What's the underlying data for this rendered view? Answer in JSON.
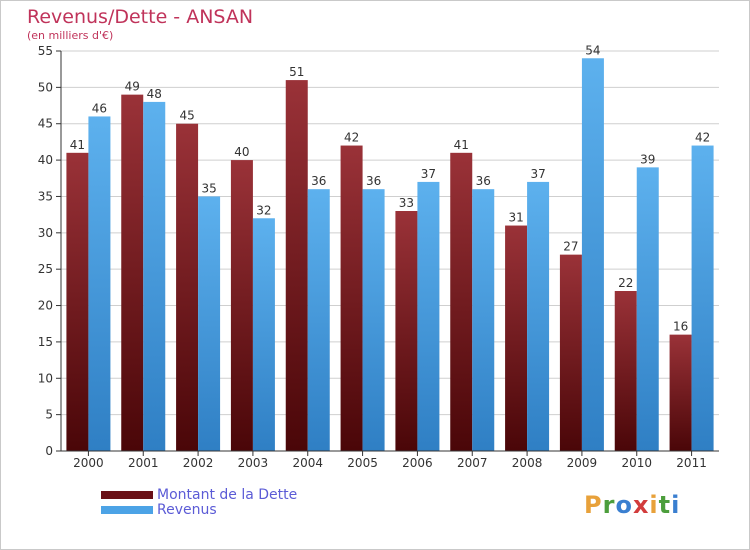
{
  "header": {
    "title": "Revenus/Dette - ANSAN",
    "subtitle": "(en milliers d'€)"
  },
  "colors": {
    "dette": "#7a1e24",
    "revenus": "#4ca3e6",
    "axis": "#333333",
    "grid": "#cfcfcf",
    "title": "#c0335a",
    "legend_text": "#5b5bd6"
  },
  "legend": {
    "items": [
      {
        "label": "Montant de la Dette",
        "color": "#6a1016"
      },
      {
        "label": "Revenus",
        "color": "#4ca3e6"
      }
    ]
  },
  "logo": {
    "letters": [
      "P",
      "r",
      "o",
      "x",
      "i",
      "t",
      "i"
    ],
    "colors": [
      "#e8a13a",
      "#4c9e3c",
      "#3a7fd0",
      "#d23c3c",
      "#e8a13a",
      "#4c9e3c",
      "#3a7fd0"
    ]
  },
  "chart_data": {
    "type": "bar",
    "title": "Revenus/Dette - ANSAN",
    "subtitle": "(en milliers d'€)",
    "categories": [
      "2000",
      "2001",
      "2002",
      "2003",
      "2004",
      "2005",
      "2006",
      "2007",
      "2008",
      "2009",
      "2010",
      "2011"
    ],
    "series": [
      {
        "name": "Montant de la Dette",
        "values": [
          41,
          49,
          45,
          40,
          51,
          42,
          33,
          41,
          31,
          27,
          22,
          16
        ]
      },
      {
        "name": "Revenus",
        "values": [
          46,
          48,
          35,
          32,
          36,
          36,
          37,
          36,
          37,
          54,
          39,
          42
        ]
      }
    ],
    "ylim": [
      0,
      55
    ],
    "yticks": [
      0,
      5,
      10,
      15,
      20,
      25,
      30,
      35,
      40,
      45,
      50,
      55
    ],
    "grid": true,
    "legend_position": "bottom-left"
  }
}
